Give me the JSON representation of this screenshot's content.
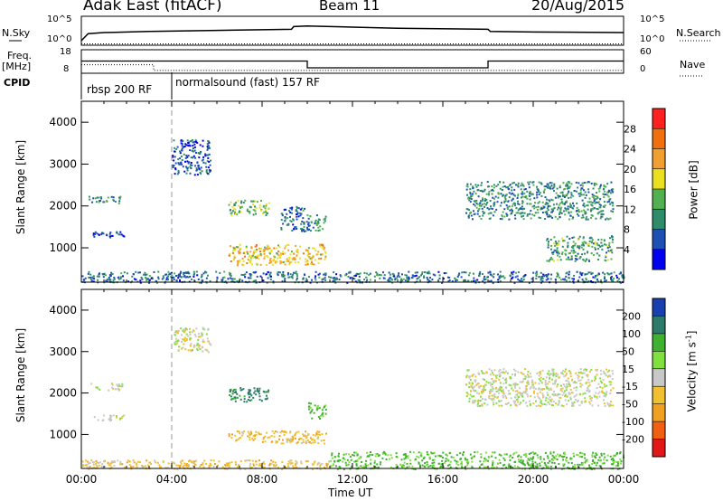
{
  "header": {
    "station": "Adak East (fitACF)",
    "beam": "Beam 11",
    "date": "20/Aug/2015"
  },
  "panel_labels": {
    "nsky": "N.Sky",
    "nsearch": "N.Search",
    "freq_line1": "Freq.",
    "freq_line2": "[MHz]",
    "nave": "Nave",
    "cpid": "CPID"
  },
  "cpid_segments": [
    {
      "label": "rbsp 200 RF",
      "start_hour": 0
    },
    {
      "label": "normalsound (fast) 157 RF",
      "start_hour": 4
    }
  ],
  "power_colorbar": {
    "label": "Power [dB]",
    "ticks": [
      "28",
      "24",
      "20",
      "16",
      "12",
      "8",
      "4"
    ],
    "colors": [
      "#0000f0",
      "#1e50b4",
      "#2e8c6a",
      "#52b052",
      "#e8e020",
      "#f0a030",
      "#f07010",
      "#ff2020"
    ]
  },
  "velocity_colorbar": {
    "label": "Velocity [m s",
    "label_sup": "-1",
    "label_end": "]",
    "ticks": [
      "200",
      "100",
      "50",
      "15",
      "-15",
      "-50",
      "-100",
      "-200"
    ],
    "colors": [
      "#e01818",
      "#f06010",
      "#f0a020",
      "#f0c030",
      "#c8c8c8",
      "#80e040",
      "#40b030",
      "#2e7a6a",
      "#1a40b0"
    ]
  },
  "axes": {
    "ylabel": "Slant Range [km]",
    "xlabel": "Time UT",
    "y_ticks": [
      "4000",
      "3000",
      "2000",
      "1000"
    ],
    "x_ticks": [
      "00:00",
      "04:00",
      "08:00",
      "12:00",
      "16:00",
      "20:00",
      "00:00"
    ],
    "nsky_ticks": [
      "10^5",
      "10^0"
    ],
    "nsearch_ticks": [
      "10^5",
      "10^0"
    ],
    "freq_ticks": [
      "18",
      "8"
    ],
    "nave_ticks": [
      "60",
      "0"
    ]
  },
  "chart_data": [
    {
      "type": "line",
      "title": "N.Sky / N.Search",
      "x_unit": "hour UT",
      "series": [
        {
          "name": "N.Sky",
          "x": [
            0,
            0.3,
            1,
            3,
            6,
            9.3,
            9.4,
            10,
            12,
            14,
            18,
            18.1,
            20,
            24
          ],
          "y": [
            0.5,
            1.8,
            2.0,
            2.2,
            2.4,
            2.6,
            3.1,
            3.2,
            3.0,
            2.8,
            2.6,
            2.2,
            2.1,
            2.0
          ],
          "ylog10": true
        },
        {
          "name": "N.Search",
          "x": [
            0,
            24
          ],
          "y": [
            0,
            0
          ],
          "ylog10": true
        }
      ],
      "ylim_log10": [
        0,
        5
      ]
    },
    {
      "type": "line",
      "title": "Freq. / Nave",
      "series": [
        {
          "name": "Freq. [MHz]",
          "x": [
            0,
            0.3,
            10,
            10,
            18,
            18,
            24
          ],
          "y": [
            13,
            13,
            13,
            10,
            10,
            13,
            13
          ]
        },
        {
          "name": "Nave",
          "x": [
            0,
            3.2,
            3.2,
            24
          ],
          "y": [
            20,
            20,
            5,
            5
          ],
          "dotted": true
        }
      ],
      "freq_ylim": [
        8,
        18
      ],
      "nave_ylim": [
        0,
        60
      ]
    },
    {
      "type": "heatmap",
      "title": "Power [dB]",
      "xlim": [
        0,
        24
      ],
      "ylim": [
        180,
        4500
      ],
      "regions": [
        {
          "t": [
            0.3,
            1.8
          ],
          "r": [
            2080,
            2250
          ],
          "v": 10
        },
        {
          "t": [
            0.5,
            1.9
          ],
          "r": [
            1250,
            1400
          ],
          "v": 6
        },
        {
          "t": [
            4.0,
            5.7
          ],
          "r": [
            2750,
            3600
          ],
          "v": 6
        },
        {
          "t": [
            6.5,
            8.3
          ],
          "r": [
            1800,
            2150
          ],
          "v": 14
        },
        {
          "t": [
            6.5,
            10.8
          ],
          "r": [
            600,
            1100
          ],
          "v": 20
        },
        {
          "t": [
            8.8,
            10.0
          ],
          "r": [
            1400,
            2000
          ],
          "v": 8
        },
        {
          "t": [
            10.0,
            10.8
          ],
          "r": [
            1400,
            1800
          ],
          "v": 10
        },
        {
          "t": [
            0,
            24
          ],
          "r": [
            180,
            450
          ],
          "v": 8
        },
        {
          "t": [
            17.0,
            23.5
          ],
          "r": [
            1700,
            2600
          ],
          "v": 10
        },
        {
          "t": [
            20.5,
            23.5
          ],
          "r": [
            700,
            1300
          ],
          "v": 12
        }
      ]
    },
    {
      "type": "heatmap",
      "title": "Velocity [m s-1]",
      "xlim": [
        0,
        24
      ],
      "ylim": [
        180,
        4500
      ],
      "regions": [
        {
          "t": [
            0.3,
            1.8
          ],
          "r": [
            2080,
            2250
          ],
          "v": 0
        },
        {
          "t": [
            0.5,
            1.9
          ],
          "r": [
            1350,
            1500
          ],
          "v": 0
        },
        {
          "t": [
            4.0,
            5.7
          ],
          "r": [
            3000,
            3600
          ],
          "v": 0
        },
        {
          "t": [
            6.5,
            8.3
          ],
          "r": [
            1800,
            2150
          ],
          "v": 120
        },
        {
          "t": [
            6.5,
            10.8
          ],
          "r": [
            800,
            1100
          ],
          "v": -40
        },
        {
          "t": [
            10.0,
            10.8
          ],
          "r": [
            1400,
            1800
          ],
          "v": 60
        },
        {
          "t": [
            0,
            11
          ],
          "r": [
            180,
            400
          ],
          "v": -30
        },
        {
          "t": [
            11,
            24
          ],
          "r": [
            180,
            600
          ],
          "v": 60
        },
        {
          "t": [
            17.0,
            23.5
          ],
          "r": [
            1700,
            2600
          ],
          "v": 0
        }
      ]
    }
  ]
}
